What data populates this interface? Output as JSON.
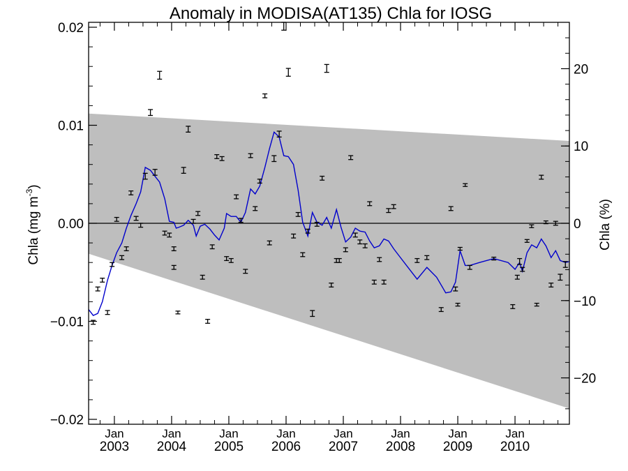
{
  "chart_data": {
    "type": "scatter",
    "title": "Anomaly in MODISA(AT135) Chla for IOSG",
    "ylabel": "Chla (mg m",
    "ylabel_sup": "-3",
    "ylabel_close": ")",
    "ylabel_right": "Chla (%)",
    "xlim": [
      2002.55,
      2010.95
    ],
    "ylim": [
      -0.0205,
      0.0205
    ],
    "ylim_right": [
      -26.0,
      26.0
    ],
    "x_ticks": [
      {
        "x": 2003.0,
        "label_top": "Jan",
        "label_bottom": "2003"
      },
      {
        "x": 2004.0,
        "label_top": "Jan",
        "label_bottom": "2004"
      },
      {
        "x": 2005.0,
        "label_top": "Jan",
        "label_bottom": "2005"
      },
      {
        "x": 2006.0,
        "label_top": "Jan",
        "label_bottom": "2006"
      },
      {
        "x": 2007.0,
        "label_top": "Jan",
        "label_bottom": "2007"
      },
      {
        "x": 2008.0,
        "label_top": "Jan",
        "label_bottom": "2008"
      },
      {
        "x": 2009.0,
        "label_top": "Jan",
        "label_bottom": "2009"
      },
      {
        "x": 2010.0,
        "label_top": "Jan",
        "label_bottom": "2010"
      }
    ],
    "y_ticks_left": [
      {
        "v": -0.02,
        "label": "−0.02"
      },
      {
        "v": -0.01,
        "label": "−0.01"
      },
      {
        "v": 0.0,
        "label": "0.00"
      },
      {
        "v": 0.01,
        "label": "0.01"
      },
      {
        "v": 0.02,
        "label": "0.02"
      }
    ],
    "y_ticks_right": [
      {
        "v": -20,
        "label": "−20"
      },
      {
        "v": -10,
        "label": "−10"
      },
      {
        "v": 0,
        "label": "0"
      },
      {
        "v": 10,
        "label": "10"
      },
      {
        "v": 20,
        "label": "20"
      }
    ],
    "band": {
      "upper": [
        [
          2002.55,
          0.0112
        ],
        [
          2010.95,
          0.0084
        ]
      ],
      "lower": [
        [
          2002.55,
          -0.0031
        ],
        [
          2010.95,
          -0.0189
        ]
      ],
      "color": "#bebebe"
    },
    "zero_line": 0.0,
    "line_color": "#0000cc",
    "points": [
      {
        "x": 2002.63,
        "y": -0.0101,
        "e": 0.0002
      },
      {
        "x": 2002.71,
        "y": -0.0067,
        "e": 0.0002
      },
      {
        "x": 2002.79,
        "y": -0.0058,
        "e": 0.0002
      },
      {
        "x": 2002.88,
        "y": -0.0091,
        "e": 0.0002
      },
      {
        "x": 2002.96,
        "y": -0.0042,
        "e": 0.0002
      },
      {
        "x": 2003.04,
        "y": 0.0004,
        "e": 0.0002
      },
      {
        "x": 2003.13,
        "y": -0.0035,
        "e": 0.0002
      },
      {
        "x": 2003.21,
        "y": -0.0026,
        "e": 0.0002
      },
      {
        "x": 2003.29,
        "y": 0.0031,
        "e": 0.0002
      },
      {
        "x": 2003.38,
        "y": 0.0005,
        "e": 0.0002
      },
      {
        "x": 2003.46,
        "y": -0.0002,
        "e": 0.0002
      },
      {
        "x": 2003.54,
        "y": 0.0048,
        "e": 0.0003
      },
      {
        "x": 2003.63,
        "y": 0.0113,
        "e": 0.0003
      },
      {
        "x": 2003.71,
        "y": 0.0052,
        "e": 0.0003
      },
      {
        "x": 2003.79,
        "y": 0.0151,
        "e": 0.0004
      },
      {
        "x": 2003.88,
        "y": -0.001,
        "e": 0.0002
      },
      {
        "x": 2003.96,
        "y": -0.0012,
        "e": 0.0002
      },
      {
        "x": 2004.04,
        "y": -0.0045,
        "e": 0.0002
      },
      {
        "x": 2004.04,
        "y": -0.0026,
        "e": 0.0002
      },
      {
        "x": 2004.11,
        "y": -0.0091,
        "e": 0.0001
      },
      {
        "x": 2004.21,
        "y": 0.0054,
        "e": 0.0003
      },
      {
        "x": 2004.29,
        "y": 0.0096,
        "e": 0.0003
      },
      {
        "x": 2004.38,
        "y": 0.0002,
        "e": 0.0002
      },
      {
        "x": 2004.46,
        "y": 0.001,
        "e": 0.0002
      },
      {
        "x": 2004.54,
        "y": -0.0055,
        "e": 0.0002
      },
      {
        "x": 2004.63,
        "y": -0.01,
        "e": 0.0002
      },
      {
        "x": 2004.71,
        "y": -0.0024,
        "e": 0.0002
      },
      {
        "x": 2004.79,
        "y": 0.0068,
        "e": 0.0002
      },
      {
        "x": 2004.88,
        "y": 0.0066,
        "e": 0.0002
      },
      {
        "x": 2004.96,
        "y": -0.0036,
        "e": 0.0002
      },
      {
        "x": 2005.04,
        "y": -0.0038,
        "e": 0.0002
      },
      {
        "x": 2005.13,
        "y": 0.0027,
        "e": 0.0002
      },
      {
        "x": 2005.21,
        "y": 0.0003,
        "e": 0.0002
      },
      {
        "x": 2005.29,
        "y": -0.0049,
        "e": 0.0002
      },
      {
        "x": 2005.38,
        "y": 0.0069,
        "e": 0.0002
      },
      {
        "x": 2005.46,
        "y": 0.0015,
        "e": 0.0002
      },
      {
        "x": 2005.54,
        "y": 0.0043,
        "e": 0.0002
      },
      {
        "x": 2005.63,
        "y": 0.013,
        "e": 0.0002
      },
      {
        "x": 2005.71,
        "y": -0.002,
        "e": 0.0002
      },
      {
        "x": 2005.79,
        "y": 0.0066,
        "e": 0.0003
      },
      {
        "x": 2005.88,
        "y": 0.0091,
        "e": 0.0003
      },
      {
        "x": 2005.96,
        "y": 0.0201,
        "e": 0.0004
      },
      {
        "x": 2006.04,
        "y": 0.0154,
        "e": 0.0004
      },
      {
        "x": 2006.13,
        "y": -0.0013,
        "e": 0.0002
      },
      {
        "x": 2006.21,
        "y": 0.0009,
        "e": 0.0002
      },
      {
        "x": 2006.29,
        "y": -0.0032,
        "e": 0.0002
      },
      {
        "x": 2006.38,
        "y": -0.0008,
        "e": 0.0002
      },
      {
        "x": 2006.46,
        "y": -0.0092,
        "e": 0.0003
      },
      {
        "x": 2006.54,
        "y": -0.0001,
        "e": 0.0002
      },
      {
        "x": 2006.63,
        "y": 0.0046,
        "e": 0.0002
      },
      {
        "x": 2006.71,
        "y": 0.0158,
        "e": 0.0004
      },
      {
        "x": 2006.79,
        "y": -0.0063,
        "e": 0.0002
      },
      {
        "x": 2006.88,
        "y": -0.0038,
        "e": 0.0002
      },
      {
        "x": 2006.93,
        "y": -0.0038,
        "e": 0.0002
      },
      {
        "x": 2007.04,
        "y": -0.0027,
        "e": 0.0002
      },
      {
        "x": 2007.13,
        "y": 0.0067,
        "e": 0.0002
      },
      {
        "x": 2007.21,
        "y": -0.0012,
        "e": 0.0002
      },
      {
        "x": 2007.29,
        "y": -0.0019,
        "e": 0.0002
      },
      {
        "x": 2007.38,
        "y": -0.0023,
        "e": 0.0002
      },
      {
        "x": 2007.46,
        "y": 0.002,
        "e": 0.0002
      },
      {
        "x": 2007.54,
        "y": -0.006,
        "e": 0.0002
      },
      {
        "x": 2007.63,
        "y": -0.0037,
        "e": 0.0002
      },
      {
        "x": 2007.71,
        "y": -0.006,
        "e": 0.0002
      },
      {
        "x": 2007.79,
        "y": 0.0013,
        "e": 0.0002
      },
      {
        "x": 2007.88,
        "y": 0.0017,
        "e": 0.0002
      },
      {
        "x": 2008.29,
        "y": -0.0038,
        "e": 0.0002
      },
      {
        "x": 2008.46,
        "y": -0.0035,
        "e": 0.0002
      },
      {
        "x": 2008.71,
        "y": -0.0088,
        "e": 0.0002
      },
      {
        "x": 2008.88,
        "y": 0.0015,
        "e": 0.0002
      },
      {
        "x": 2008.96,
        "y": -0.0067,
        "e": 0.0002
      },
      {
        "x": 2009.0,
        "y": -0.0083,
        "e": 0.0001
      },
      {
        "x": 2009.04,
        "y": -0.0026,
        "e": 0.0001
      },
      {
        "x": 2009.13,
        "y": 0.0039,
        "e": 0.0001
      },
      {
        "x": 2009.21,
        "y": -0.0045,
        "e": 0.0002
      },
      {
        "x": 2009.63,
        "y": -0.0036,
        "e": 0.0001
      },
      {
        "x": 2009.96,
        "y": -0.0085,
        "e": 0.0002
      },
      {
        "x": 2010.04,
        "y": -0.0055,
        "e": 0.0002
      },
      {
        "x": 2010.08,
        "y": -0.0039,
        "e": 0.0003
      },
      {
        "x": 2010.13,
        "y": -0.0047,
        "e": 0.0002
      },
      {
        "x": 2010.21,
        "y": -0.0018,
        "e": 0.0001
      },
      {
        "x": 2010.29,
        "y": -0.0003,
        "e": 0.0001
      },
      {
        "x": 2010.38,
        "y": -0.0083,
        "e": 0.0001
      },
      {
        "x": 2010.46,
        "y": 0.0047,
        "e": 0.0002
      },
      {
        "x": 2010.54,
        "y": 0.0001,
        "e": 0.0001
      },
      {
        "x": 2010.63,
        "y": -0.0063,
        "e": 0.0002
      },
      {
        "x": 2010.71,
        "y": 0.0,
        "e": 0.0002
      },
      {
        "x": 2010.79,
        "y": -0.0055,
        "e": 0.0003
      },
      {
        "x": 2010.88,
        "y": -0.0042,
        "e": 0.0003
      }
    ],
    "smooth_line": [
      [
        2002.55,
        -0.0088
      ],
      [
        2002.63,
        -0.0094
      ],
      [
        2002.71,
        -0.0092
      ],
      [
        2002.79,
        -0.008
      ],
      [
        2002.88,
        -0.0058
      ],
      [
        2002.96,
        -0.0043
      ],
      [
        2003.04,
        -0.003
      ],
      [
        2003.13,
        -0.002
      ],
      [
        2003.21,
        -0.0005
      ],
      [
        2003.29,
        0.0008
      ],
      [
        2003.38,
        0.002
      ],
      [
        2003.46,
        0.0032
      ],
      [
        2003.54,
        0.0057
      ],
      [
        2003.63,
        0.0054
      ],
      [
        2003.71,
        0.0048
      ],
      [
        2003.79,
        0.0042
      ],
      [
        2003.88,
        0.0025
      ],
      [
        2003.96,
        0.0002
      ],
      [
        2004.04,
        0.0001
      ],
      [
        2004.08,
        -0.0005
      ],
      [
        2004.13,
        -0.0004
      ],
      [
        2004.21,
        -0.0002
      ],
      [
        2004.29,
        0.0003
      ],
      [
        2004.38,
        -0.0002
      ],
      [
        2004.43,
        -0.0013
      ],
      [
        2004.5,
        -0.0003
      ],
      [
        2004.58,
        -0.0001
      ],
      [
        2004.67,
        -0.0006
      ],
      [
        2004.75,
        -0.0012
      ],
      [
        2004.83,
        -0.0017
      ],
      [
        2004.92,
        -0.0005
      ],
      [
        2004.96,
        0.001
      ],
      [
        2005.04,
        0.0007
      ],
      [
        2005.13,
        0.0007
      ],
      [
        2005.21,
        0.0001
      ],
      [
        2005.29,
        0.0011
      ],
      [
        2005.38,
        0.0035
      ],
      [
        2005.46,
        0.003
      ],
      [
        2005.54,
        0.0038
      ],
      [
        2005.63,
        0.0057
      ],
      [
        2005.71,
        0.0076
      ],
      [
        2005.79,
        0.0093
      ],
      [
        2005.88,
        0.0088
      ],
      [
        2005.96,
        0.0069
      ],
      [
        2006.04,
        0.0068
      ],
      [
        2006.13,
        0.006
      ],
      [
        2006.21,
        0.0034
      ],
      [
        2006.29,
        0.0001
      ],
      [
        2006.38,
        -0.0013
      ],
      [
        2006.46,
        0.0011
      ],
      [
        2006.54,
        0.0001
      ],
      [
        2006.63,
        -0.0002
      ],
      [
        2006.71,
        0.0006
      ],
      [
        2006.79,
        -0.0005
      ],
      [
        2006.88,
        0.0014
      ],
      [
        2006.96,
        -0.0004
      ],
      [
        2007.04,
        -0.0019
      ],
      [
        2007.13,
        -0.0014
      ],
      [
        2007.21,
        -0.0005
      ],
      [
        2007.29,
        -0.0008
      ],
      [
        2007.38,
        -0.0009
      ],
      [
        2007.46,
        -0.0018
      ],
      [
        2007.54,
        -0.0025
      ],
      [
        2007.63,
        -0.0023
      ],
      [
        2007.71,
        -0.0016
      ],
      [
        2007.79,
        -0.0018
      ],
      [
        2007.88,
        -0.0026
      ],
      [
        2007.96,
        -0.0032
      ],
      [
        2008.13,
        -0.0045
      ],
      [
        2008.29,
        -0.0057
      ],
      [
        2008.46,
        -0.0045
      ],
      [
        2008.63,
        -0.0055
      ],
      [
        2008.79,
        -0.0071
      ],
      [
        2008.88,
        -0.007
      ],
      [
        2008.96,
        -0.006
      ],
      [
        2009.04,
        -0.0028
      ],
      [
        2009.13,
        -0.0043
      ],
      [
        2009.21,
        -0.0043
      ],
      [
        2009.38,
        -0.004
      ],
      [
        2009.63,
        -0.0036
      ],
      [
        2009.88,
        -0.004
      ],
      [
        2010.0,
        -0.0047
      ],
      [
        2010.08,
        -0.004
      ],
      [
        2010.13,
        -0.0049
      ],
      [
        2010.21,
        -0.003
      ],
      [
        2010.29,
        -0.0022
      ],
      [
        2010.38,
        -0.0025
      ],
      [
        2010.46,
        -0.0016
      ],
      [
        2010.54,
        -0.0023
      ],
      [
        2010.63,
        -0.0035
      ],
      [
        2010.71,
        -0.0028
      ],
      [
        2010.79,
        -0.0038
      ],
      [
        2010.88,
        -0.004
      ],
      [
        2010.95,
        -0.0039
      ]
    ],
    "grid": false,
    "legend": "none"
  }
}
